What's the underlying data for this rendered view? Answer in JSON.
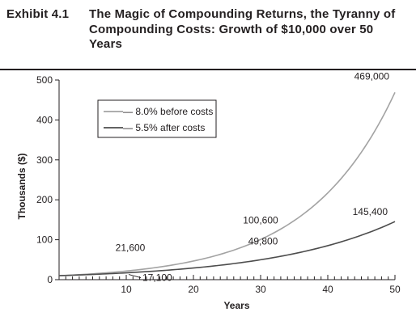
{
  "exhibit": {
    "label": "Exhibit 4.1",
    "title": "The Magic of Compounding Returns, the Tyranny of Compounding Costs: Growth of $10,000 over 50 Years"
  },
  "chart_data": {
    "type": "line",
    "title": "The Magic of Compounding Returns, the Tyranny of Compounding Costs: Growth of $10,000 over 50 Years",
    "xlabel": "Years",
    "ylabel": "Thousands ($)",
    "xlim": [
      0,
      50
    ],
    "ylim": [
      0,
      500
    ],
    "xticks": [
      10,
      20,
      30,
      40,
      50
    ],
    "yticks": [
      0,
      100,
      200,
      300,
      400,
      500
    ],
    "grid": false,
    "legend_position": "top-left",
    "series": [
      {
        "name": "8.0% before costs",
        "color": "#a3a3a3",
        "rate": 0.08,
        "x": [
          0,
          5,
          10,
          15,
          20,
          25,
          30,
          35,
          40,
          45,
          50
        ],
        "values": [
          10,
          14.7,
          21.6,
          31.7,
          46.6,
          68.5,
          100.6,
          147.9,
          217.2,
          319.2,
          469.0
        ]
      },
      {
        "name": "5.5% after costs",
        "color": "#4d4d4d",
        "rate": 0.055,
        "x": [
          0,
          5,
          10,
          15,
          20,
          25,
          30,
          35,
          40,
          45,
          50
        ],
        "values": [
          10,
          13.1,
          17.1,
          22.3,
          29.2,
          38.1,
          49.8,
          65.1,
          85.1,
          111.2,
          145.4
        ]
      }
    ],
    "annotations": [
      {
        "text": "21,600",
        "x": 10,
        "y": 21.6
      },
      {
        "text": "17,100",
        "x": 10,
        "y": 17.1
      },
      {
        "text": "100,600",
        "x": 30,
        "y": 100.6
      },
      {
        "text": "49,800",
        "x": 30,
        "y": 49.8
      },
      {
        "text": "469,000",
        "x": 50,
        "y": 469.0
      },
      {
        "text": "145,400",
        "x": 50,
        "y": 145.4
      }
    ]
  }
}
